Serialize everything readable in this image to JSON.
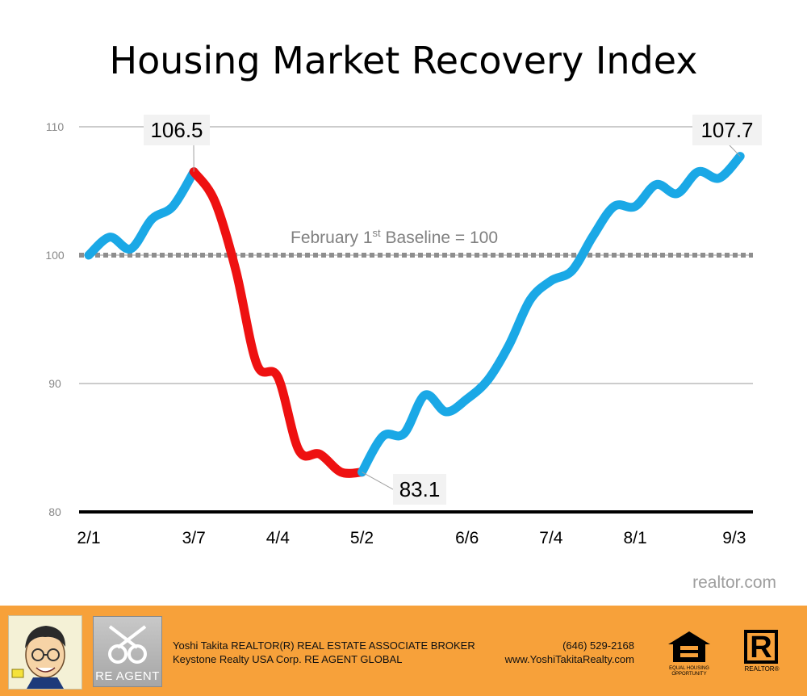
{
  "chart_data": {
    "type": "line",
    "title": "Housing Market Recovery Index",
    "xlabel": "",
    "ylabel": "",
    "ylim": [
      80,
      110
    ],
    "yticks": [
      80,
      90,
      100,
      110
    ],
    "x_tick_labels": [
      "2/1",
      "3/7",
      "4/4",
      "5/2",
      "6/6",
      "7/4",
      "8/1",
      "9/3"
    ],
    "x_tick_dates": [
      "2020-02-01",
      "2020-03-07",
      "2020-04-04",
      "2020-05-02",
      "2020-06-06",
      "2020-07-04",
      "2020-08-01",
      "2020-09-03"
    ],
    "grid": true,
    "baseline": {
      "value": 100,
      "label": "February 1st Baseline = 100",
      "label_main": "February 1",
      "label_sup": "st",
      "label_rest": " Baseline = 100"
    },
    "series": [
      {
        "points": [
          {
            "x": "2020-02-01",
            "y": 100.0
          },
          {
            "x": "2020-02-08",
            "y": 101.4
          },
          {
            "x": "2020-02-15",
            "y": 100.5
          },
          {
            "x": "2020-02-22",
            "y": 102.8
          },
          {
            "x": "2020-02-29",
            "y": 103.8
          },
          {
            "x": "2020-03-07",
            "y": 106.5
          },
          {
            "x": "2020-03-14",
            "y": 104.2
          },
          {
            "x": "2020-03-21",
            "y": 98.8
          },
          {
            "x": "2020-03-28",
            "y": 91.5
          },
          {
            "x": "2020-04-04",
            "y": 90.5
          },
          {
            "x": "2020-04-11",
            "y": 84.8
          },
          {
            "x": "2020-04-18",
            "y": 84.5
          },
          {
            "x": "2020-04-25",
            "y": 83.1
          },
          {
            "x": "2020-05-02",
            "y": 83.1
          },
          {
            "x": "2020-05-09",
            "y": 85.9
          },
          {
            "x": "2020-05-16",
            "y": 86.1
          },
          {
            "x": "2020-05-23",
            "y": 89.1
          },
          {
            "x": "2020-05-30",
            "y": 87.8
          },
          {
            "x": "2020-06-06",
            "y": 88.8
          },
          {
            "x": "2020-06-13",
            "y": 90.3
          },
          {
            "x": "2020-06-20",
            "y": 93.0
          },
          {
            "x": "2020-06-27",
            "y": 96.5
          },
          {
            "x": "2020-07-04",
            "y": 98.0
          },
          {
            "x": "2020-07-11",
            "y": 98.8
          },
          {
            "x": "2020-07-18",
            "y": 101.5
          },
          {
            "x": "2020-07-25",
            "y": 103.8
          },
          {
            "x": "2020-08-01",
            "y": 103.8
          },
          {
            "x": "2020-08-08",
            "y": 105.5
          },
          {
            "x": "2020-08-15",
            "y": 104.8
          },
          {
            "x": "2020-08-22",
            "y": 106.5
          },
          {
            "x": "2020-08-29",
            "y": 106.0
          },
          {
            "x": "2020-09-05",
            "y": 107.7
          }
        ],
        "segment_colors": [
          "#1aa8e6",
          "#ee1111",
          "#1aa8e6"
        ],
        "decline_start": "2020-03-07",
        "decline_end": "2020-05-02"
      }
    ],
    "annotations": [
      {
        "text": "106.5",
        "x": "2020-03-07",
        "y": 106.5
      },
      {
        "text": "83.1",
        "x": "2020-05-02",
        "y": 83.1
      },
      {
        "text": "107.7",
        "x": "2020-09-05",
        "y": 107.7
      }
    ],
    "colors": {
      "up": "#1aa8e6",
      "down": "#ee1111",
      "baseline": "#8e8e8e",
      "grid": "#9a9a9a"
    }
  },
  "source": "realtor.com",
  "footer": {
    "name_line": "Yoshi Takita REALTOR(R) REAL ESTATE ASSOCIATE BROKER",
    "company_line": "Keystone Realty USA Corp.  RE AGENT GLOBAL",
    "phone": "(646) 529-2168",
    "website": "www.YoshiTakitaRealty.com",
    "agent_logo_text": "RE AGENT",
    "eho_caption": "EQUAL HOUSING OPPORTUNITY",
    "realtor_letter": "R",
    "realtor_caption": "REALTOR®",
    "background": "#f7a13a"
  }
}
